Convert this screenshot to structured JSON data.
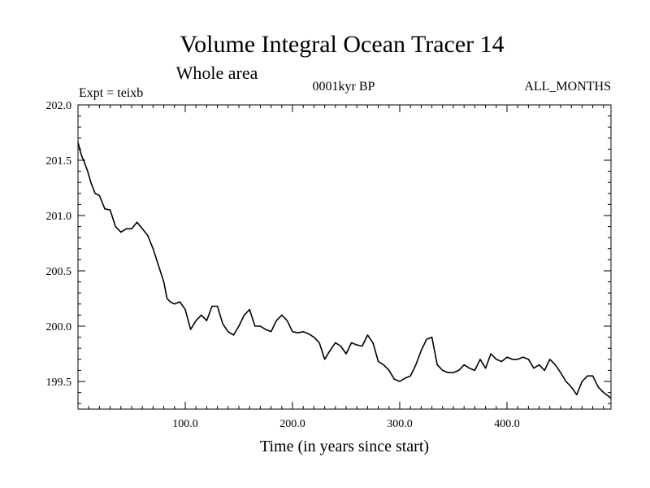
{
  "chart_data": {
    "type": "line",
    "title": "Volume Integral Ocean Tracer 14",
    "subtitle": "Whole area",
    "header_left": "Expt = teixb",
    "header_center": "0001kyr BP",
    "header_right": "ALL_MONTHS",
    "xlabel": "Time (in years since start)",
    "ylabel": "",
    "xlim": [
      0,
      497
    ],
    "ylim": [
      199.25,
      202.0
    ],
    "x_ticks": [
      100,
      200,
      300,
      400
    ],
    "x_tick_labels": [
      "100.0",
      "200.0",
      "300.0",
      "400.0"
    ],
    "y_ticks": [
      199.5,
      200.0,
      200.5,
      201.0,
      201.5,
      202.0
    ],
    "y_tick_labels": [
      "199.5",
      "200.0",
      "200.5",
      "201.0",
      "201.5",
      "202.0"
    ],
    "grid": false,
    "legend": "none",
    "line_color": "#000000",
    "series": [
      {
        "x": [
          0,
          3,
          6,
          9,
          12,
          16,
          20,
          25,
          30,
          35,
          40,
          45,
          50,
          55,
          60,
          65,
          70,
          75,
          80,
          83,
          86,
          90,
          95,
          100,
          105,
          110,
          115,
          120,
          125,
          130,
          135,
          140,
          145,
          150,
          155,
          160,
          165,
          170,
          175,
          180,
          185,
          190,
          195,
          200,
          205,
          210,
          215,
          220,
          225,
          230,
          235,
          240,
          245,
          250,
          255,
          260,
          265,
          270,
          275,
          280,
          285,
          290,
          295,
          300,
          305,
          310,
          315,
          320,
          325,
          330,
          335,
          340,
          345,
          350,
          355,
          360,
          365,
          370,
          375,
          380,
          385,
          390,
          395,
          400,
          405,
          410,
          415,
          420,
          425,
          430,
          435,
          440,
          445,
          450,
          455,
          460,
          465,
          470,
          475,
          480,
          485,
          490,
          497
        ],
        "y": [
          201.66,
          201.55,
          201.48,
          201.4,
          201.3,
          201.2,
          201.18,
          201.06,
          201.05,
          200.9,
          200.85,
          200.88,
          200.88,
          200.94,
          200.88,
          200.82,
          200.7,
          200.55,
          200.4,
          200.25,
          200.22,
          200.2,
          200.22,
          200.15,
          199.97,
          200.05,
          200.1,
          200.05,
          200.18,
          200.18,
          200.02,
          199.95,
          199.92,
          200.0,
          200.1,
          200.15,
          200.0,
          200.0,
          199.97,
          199.95,
          200.05,
          200.1,
          200.05,
          199.95,
          199.94,
          199.95,
          199.93,
          199.9,
          199.85,
          199.7,
          199.78,
          199.85,
          199.82,
          199.75,
          199.85,
          199.83,
          199.82,
          199.92,
          199.85,
          199.68,
          199.65,
          199.6,
          199.52,
          199.5,
          199.53,
          199.55,
          199.65,
          199.78,
          199.88,
          199.9,
          199.65,
          199.6,
          199.58,
          199.58,
          199.6,
          199.65,
          199.62,
          199.6,
          199.7,
          199.62,
          199.75,
          199.7,
          199.68,
          199.72,
          199.7,
          199.7,
          199.72,
          199.7,
          199.62,
          199.65,
          199.6,
          199.7,
          199.65,
          199.58,
          199.5,
          199.45,
          199.38,
          199.5,
          199.55,
          199.55,
          199.45,
          199.4,
          199.35
        ]
      }
    ]
  }
}
